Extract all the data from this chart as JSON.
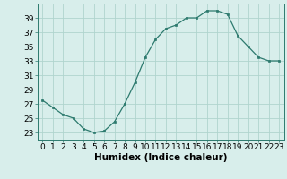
{
  "x": [
    0,
    1,
    2,
    3,
    4,
    5,
    6,
    7,
    8,
    9,
    10,
    11,
    12,
    13,
    14,
    15,
    16,
    17,
    18,
    19,
    20,
    21,
    22,
    23
  ],
  "y": [
    27.5,
    26.5,
    25.5,
    25.0,
    23.5,
    23.0,
    23.2,
    24.5,
    27.0,
    30.0,
    33.5,
    36.0,
    37.5,
    38.0,
    39.0,
    39.0,
    40.0,
    40.0,
    39.5,
    36.5,
    35.0,
    33.5,
    33.0,
    33.0
  ],
  "xlabel": "Humidex (Indice chaleur)",
  "ylim": [
    22,
    41
  ],
  "yticks": [
    23,
    25,
    27,
    29,
    31,
    33,
    35,
    37,
    39
  ],
  "xticks": [
    0,
    1,
    2,
    3,
    4,
    5,
    6,
    7,
    8,
    9,
    10,
    11,
    12,
    13,
    14,
    15,
    16,
    17,
    18,
    19,
    20,
    21,
    22,
    23
  ],
  "line_color": "#2d7a6e",
  "marker": "s",
  "marker_size": 2.0,
  "bg_color": "#d8eeeb",
  "grid_color": "#b0d4ce",
  "tick_label_fontsize": 6.5,
  "xlabel_fontsize": 7.5
}
